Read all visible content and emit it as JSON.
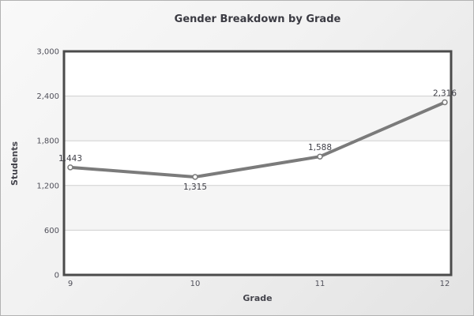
{
  "chart_data": {
    "type": "line",
    "title": "Gender Breakdown by Grade",
    "xlabel": "Grade",
    "ylabel": "Students",
    "categories": [
      "9",
      "10",
      "11",
      "12"
    ],
    "series": [
      {
        "name": "Students",
        "values": [
          1443,
          1315,
          1588,
          2316
        ],
        "value_labels": [
          "1,443",
          "1,315",
          "1,588",
          "2,316"
        ],
        "label_placement": [
          "above",
          "below",
          "above",
          "above"
        ]
      }
    ],
    "ylim": [
      0,
      3000
    ],
    "y_tick_values": [
      0,
      600,
      1200,
      1800,
      2400,
      3000
    ],
    "y_tick_labels": [
      "0",
      "600",
      "1,200",
      "1,800",
      "2,400",
      "3,000"
    ],
    "grid": true,
    "legend": false,
    "colors": {
      "line": "#7b7b7b",
      "marker_fill": "#ffffff",
      "band_main": "#ffffff",
      "band_alt": "#f5f5f5",
      "grid": "#cfcfcf",
      "plot_border": "#4b4b4b",
      "tick_text": "#50505a",
      "title_text": "#3a3a42"
    }
  }
}
